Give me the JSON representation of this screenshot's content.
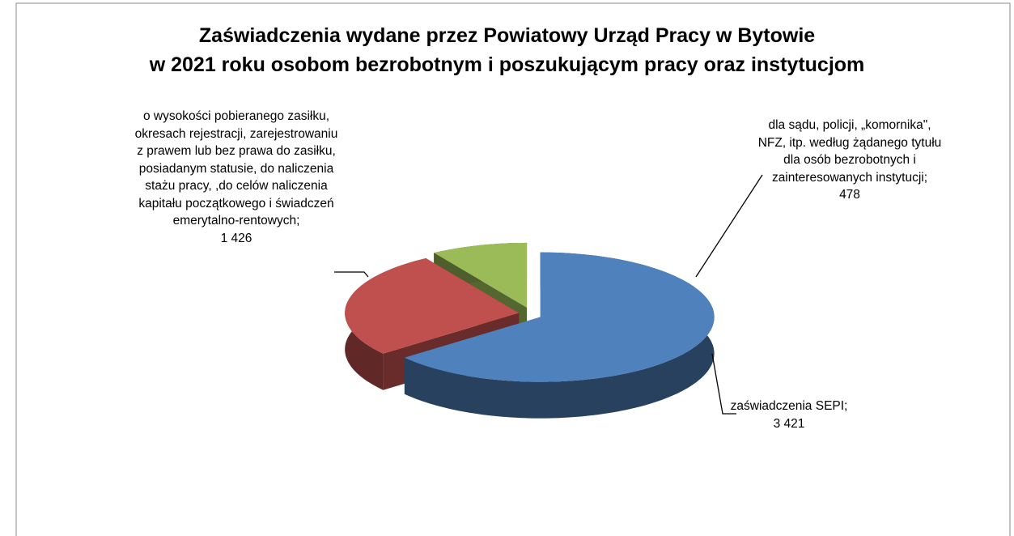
{
  "chart_data": {
    "type": "pie3d",
    "title": "Zaświadczenia wydane przez Powiatowy Urząd Pracy w Bytowie\nw 2021 roku osobom bezrobotnym i poszukującym pracy oraz instytucjom",
    "categories": [
      "zaświadczenia SEPI;",
      "o wysokości pobieranego zasiłku, okresach rejestracji, zarejestrowaniu z prawem lub bez prawa do zasiłku, posiadanym statusie, do naliczenia stażu pracy, ,do celów naliczenia kapitału początkowego i świadczeń emerytalno-rentowych;",
      "dla sądu, policji, „komornika\", NFZ, itp. według żądanego tytułu dla osób bezrobotnych i zainteresowanych instytucji;"
    ],
    "values": [
      3421,
      1426,
      478
    ],
    "value_labels": [
      "3 421",
      "1 426",
      "478"
    ],
    "colors": [
      "#4f81bd",
      "#c0504d",
      "#9bbb59"
    ]
  }
}
